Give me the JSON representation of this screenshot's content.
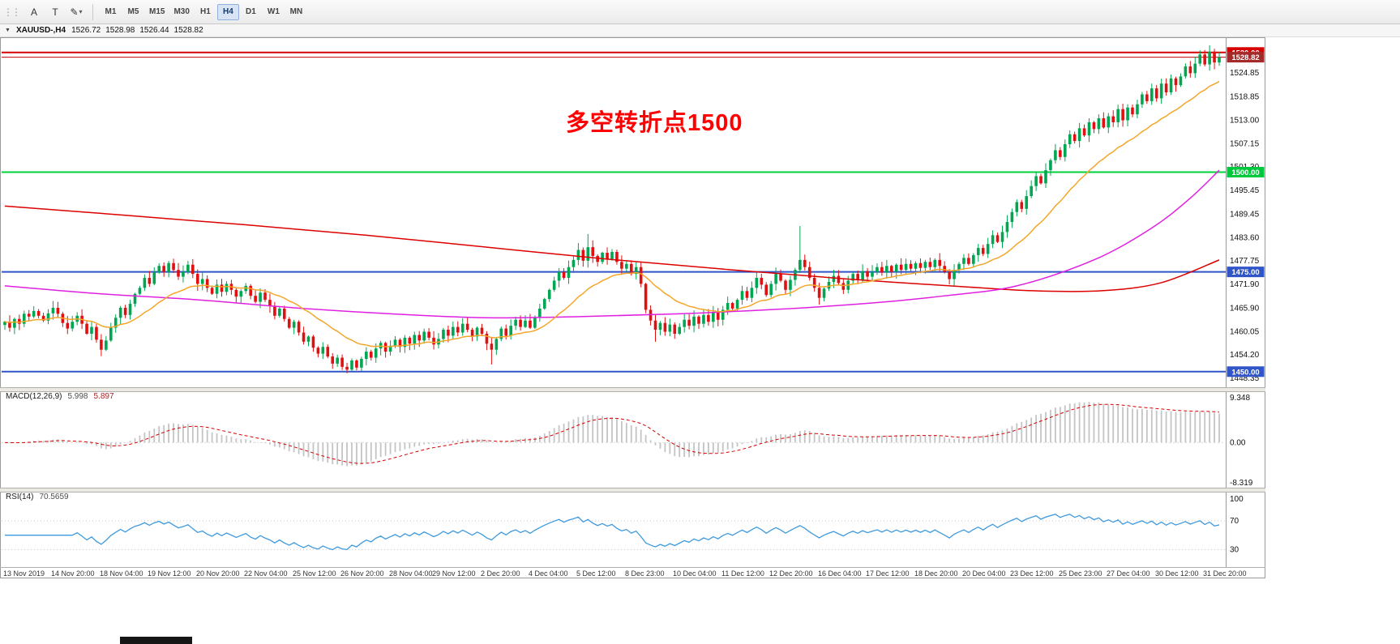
{
  "toolbar": {
    "tools": [
      {
        "name": "pointer-tool",
        "glyph": "A"
      },
      {
        "name": "text-tool",
        "glyph": "T"
      },
      {
        "name": "draw-tool",
        "glyph": "✎"
      }
    ],
    "timeframes": [
      {
        "label": "M1",
        "active": false
      },
      {
        "label": "M5",
        "active": false
      },
      {
        "label": "M15",
        "active": false
      },
      {
        "label": "M30",
        "active": false
      },
      {
        "label": "H1",
        "active": false
      },
      {
        "label": "H4",
        "active": true
      },
      {
        "label": "D1",
        "active": false
      },
      {
        "label": "W1",
        "active": false
      },
      {
        "label": "MN",
        "active": false
      }
    ]
  },
  "symbol_bar": {
    "symbol": "XAUUSD-,H4",
    "open": "1526.72",
    "high": "1528.98",
    "low": "1526.44",
    "close": "1528.82"
  },
  "annotation": {
    "text": "多空转折点1500",
    "color": "#FF0000"
  },
  "chart_data": [
    {
      "type": "candlestick",
      "symbol": "XAUUSD-",
      "timeframe": "H4",
      "ylim": [
        1446.5,
        1533.0
      ],
      "up_color": "#00A651",
      "down_color": "#E01010",
      "closes": [
        1462.5,
        1461.0,
        1463.2,
        1462.0,
        1464.5,
        1463.8,
        1465.2,
        1464.0,
        1462.8,
        1464.6,
        1466.0,
        1464.5,
        1462.2,
        1460.8,
        1462.5,
        1464.0,
        1462.0,
        1459.5,
        1461.2,
        1458.0,
        1455.5,
        1457.8,
        1461.0,
        1463.5,
        1466.0,
        1464.2,
        1467.0,
        1469.5,
        1471.0,
        1473.5,
        1472.0,
        1474.8,
        1476.5,
        1475.0,
        1477.2,
        1475.5,
        1473.8,
        1475.0,
        1476.8,
        1474.5,
        1472.0,
        1473.2,
        1471.0,
        1469.5,
        1471.8,
        1470.0,
        1472.0,
        1470.5,
        1468.8,
        1470.2,
        1471.5,
        1469.0,
        1467.5,
        1469.8,
        1468.0,
        1466.5,
        1464.0,
        1465.8,
        1463.2,
        1461.0,
        1462.5,
        1459.8,
        1457.5,
        1458.8,
        1456.0,
        1454.5,
        1456.2,
        1453.8,
        1452.0,
        1453.5,
        1451.2,
        1450.5,
        1452.8,
        1451.0,
        1453.2,
        1455.0,
        1453.5,
        1455.8,
        1457.2,
        1455.0,
        1456.5,
        1458.0,
        1456.2,
        1458.5,
        1457.0,
        1459.2,
        1457.8,
        1460.0,
        1458.5,
        1456.8,
        1458.2,
        1460.5,
        1459.0,
        1461.2,
        1459.8,
        1462.0,
        1460.5,
        1458.8,
        1461.0,
        1459.5,
        1457.0,
        1455.5,
        1458.2,
        1460.8,
        1459.0,
        1461.5,
        1463.0,
        1461.2,
        1462.8,
        1461.0,
        1463.5,
        1465.8,
        1468.2,
        1470.5,
        1472.8,
        1475.0,
        1473.5,
        1476.2,
        1478.0,
        1480.5,
        1477.8,
        1481.2,
        1479.0,
        1477.5,
        1479.8,
        1478.2,
        1480.0,
        1477.5,
        1475.8,
        1477.0,
        1474.5,
        1476.2,
        1472.0,
        1465.5,
        1462.8,
        1460.5,
        1462.2,
        1460.0,
        1461.8,
        1459.5,
        1461.2,
        1463.0,
        1461.5,
        1463.8,
        1462.0,
        1464.2,
        1462.5,
        1464.8,
        1463.0,
        1465.5,
        1467.2,
        1465.8,
        1468.0,
        1470.2,
        1468.5,
        1471.0,
        1473.5,
        1471.8,
        1469.2,
        1472.0,
        1474.5,
        1472.8,
        1470.5,
        1473.0,
        1475.5,
        1478.0,
        1476.2,
        1473.5,
        1471.0,
        1468.5,
        1470.8,
        1472.5,
        1474.0,
        1472.2,
        1470.5,
        1472.8,
        1474.5,
        1473.0,
        1475.2,
        1473.8,
        1475.0,
        1476.2,
        1474.8,
        1476.5,
        1475.0,
        1476.8,
        1475.5,
        1477.0,
        1475.8,
        1477.2,
        1476.0,
        1477.5,
        1476.2,
        1478.0,
        1476.5,
        1475.0,
        1473.2,
        1475.5,
        1477.0,
        1478.5,
        1477.0,
        1479.2,
        1481.0,
        1479.5,
        1482.0,
        1484.2,
        1482.5,
        1485.0,
        1487.5,
        1490.0,
        1492.5,
        1490.8,
        1494.0,
        1496.5,
        1499.0,
        1497.2,
        1500.5,
        1503.0,
        1505.5,
        1503.8,
        1507.0,
        1509.5,
        1507.8,
        1511.0,
        1509.2,
        1512.5,
        1510.8,
        1513.5,
        1511.2,
        1514.0,
        1512.5,
        1515.8,
        1513.0,
        1516.2,
        1514.5,
        1517.0,
        1519.5,
        1517.8,
        1521.0,
        1518.5,
        1522.2,
        1520.0,
        1523.5,
        1521.8,
        1524.0,
        1526.5,
        1524.8,
        1527.2,
        1529.5,
        1527.0,
        1530.2,
        1527.5,
        1528.82
      ],
      "spikes": [
        {
          "i": 71,
          "low": 1449.6
        },
        {
          "i": 101,
          "low": 1451.8
        },
        {
          "i": 121,
          "high": 1484.5
        },
        {
          "i": 135,
          "low": 1457.5
        },
        {
          "i": 165,
          "high": 1486.5
        },
        {
          "i": 250,
          "high": 1531.8
        }
      ],
      "price_ticks": [
        1524.85,
        1518.85,
        1513.0,
        1507.15,
        1501.3,
        1495.45,
        1489.45,
        1483.6,
        1477.75,
        1471.9,
        1465.9,
        1460.05,
        1454.2,
        1448.35
      ],
      "levels": [
        {
          "value": 1530.0,
          "label": "1530.00",
          "color": "#D60000",
          "badge_bg": "#D60000",
          "badge_fg": "#FFFFFF",
          "width": 2
        },
        {
          "value": 1528.82,
          "label": "1528.82",
          "color": "#C00000",
          "badge_bg": "#A52A2A",
          "badge_fg": "#FFFFFF",
          "width": 1
        },
        {
          "value": 1500.0,
          "label": "1500.00",
          "color": "#00D23C",
          "badge_bg": "#00C83C",
          "badge_fg": "#FFFFFF",
          "width": 2
        },
        {
          "value": 1475.0,
          "label": "1475.00",
          "color": "#2F55C8",
          "badge_bg": "#2F55C8",
          "badge_fg": "#FFFFFF",
          "width": 2
        },
        {
          "value": 1450.0,
          "label": "1450.00",
          "color": "#2F55C8",
          "badge_bg": "#2F55C8",
          "badge_fg": "#FFFFFF",
          "width": 2
        }
      ],
      "moving_averages": [
        {
          "name": "ma-slow-red",
          "color": "#DC0000",
          "anchors": [
            [
              0,
              1491.5
            ],
            [
              25,
              1489.2
            ],
            [
              50,
              1486.8
            ],
            [
              75,
              1484.2
            ],
            [
              100,
              1481.2
            ],
            [
              125,
              1478.2
            ],
            [
              150,
              1475.6
            ],
            [
              175,
              1473.2
            ],
            [
              200,
              1471.2
            ],
            [
              215,
              1470.2
            ],
            [
              228,
              1470.3
            ],
            [
              240,
              1472.3
            ],
            [
              252,
              1478.0
            ]
          ]
        },
        {
          "name": "ma-mid-magenta",
          "color": "#E020E0",
          "anchors": [
            [
              0,
              1471.5
            ],
            [
              20,
              1469.5
            ],
            [
              40,
              1468.0
            ],
            [
              60,
              1466.0
            ],
            [
              80,
              1464.5
            ],
            [
              100,
              1463.5
            ],
            [
              120,
              1463.8
            ],
            [
              140,
              1464.5
            ],
            [
              160,
              1465.6
            ],
            [
              180,
              1467.2
            ],
            [
              195,
              1469.0
            ],
            [
              210,
              1471.5
            ],
            [
              226,
              1478.0
            ],
            [
              238,
              1486.0
            ],
            [
              246,
              1493.5
            ],
            [
              252,
              1500.5
            ]
          ]
        },
        {
          "name": "ma-fast-orange",
          "color": "#F4A62A",
          "ema_period": 20
        }
      ],
      "x_ticks": [
        "13 Nov 2019",
        "14 Nov 20:00",
        "18 Nov 04:00",
        "19 Nov 12:00",
        "20 Nov 20:00",
        "22 Nov 04:00",
        "25 Nov 12:00",
        "26 Nov 20:00",
        "28 Nov 04:00",
        "29 Nov 12:00",
        "2 Dec 20:00",
        "4 Dec 04:00",
        "5 Dec 12:00",
        "8 Dec 23:00",
        "10 Dec 04:00",
        "11 Dec 12:00",
        "12 Dec 20:00",
        "16 Dec 04:00",
        "17 Dec 12:00",
        "18 Dec 20:00",
        "20 Dec 04:00",
        "23 Dec 12:00",
        "25 Dec 23:00",
        "27 Dec 04:00",
        "30 Dec 12:00",
        "31 Dec 20:00"
      ]
    },
    {
      "type": "bar",
      "name": "MACD",
      "header": {
        "label": "MACD(12,26,9)",
        "value": "5.998",
        "signal": "5.897"
      },
      "params": {
        "fast": 12,
        "slow": 26,
        "signal": 9
      },
      "ylim": [
        -8.319,
        9.348
      ],
      "yticks": [
        "9.348",
        "0.00",
        "-8.319"
      ],
      "histogram_color": "#C4C4C4",
      "signal_color": "#D60000",
      "source": "derived from chart_data.0.closes"
    },
    {
      "type": "line",
      "name": "RSI",
      "header": {
        "label": "RSI(14)",
        "value": "70.5659"
      },
      "period": 14,
      "ylim": [
        8,
        107
      ],
      "yticks": [
        "100",
        "70",
        "30"
      ],
      "level_lines": [
        70,
        30
      ],
      "line_color": "#3E9ADE",
      "source": "derived from chart_data.0.closes"
    }
  ]
}
